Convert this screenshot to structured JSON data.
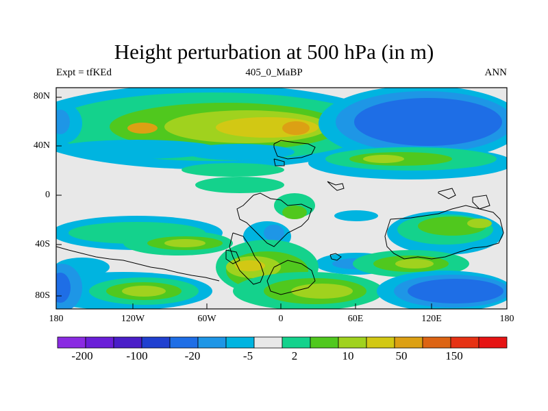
{
  "title": "Height perturbation at 500 hPa (in m)",
  "left_label": "Expt = tfKEd",
  "center_label": "405_0_MaBP",
  "right_label": "ANN",
  "y_ticks": [
    "80N",
    "40N",
    "0",
    "40S",
    "80S"
  ],
  "x_ticks": [
    "180",
    "120W",
    "60W",
    "0",
    "60E",
    "120E",
    "180"
  ],
  "colorbar_labels": [
    "-200",
    "-100",
    "-20",
    "-5",
    "2",
    "10",
    "50",
    "150"
  ],
  "colorbar_colors": [
    "#8a2be2",
    "#6a1fd8",
    "#4a1ec8",
    "#2040d0",
    "#1e6ee6",
    "#1e96e6",
    "#00b4e0",
    "#e8e8e8",
    "#14d28c",
    "#50c81e",
    "#a0d21e",
    "#d2c814",
    "#dca014",
    "#dc6414",
    "#e63214",
    "#e61414"
  ],
  "chart_data": {
    "type": "heatmap",
    "title": "Height perturbation at 500 hPa (in m)",
    "xlabel": "",
    "ylabel": "",
    "xlim": [
      -180,
      180
    ],
    "ylim": [
      -90,
      90
    ],
    "x_ticks": [
      "180",
      "120W",
      "60W",
      "0",
      "60E",
      "120E",
      "180"
    ],
    "y_ticks": [
      "80N",
      "40N",
      "0",
      "40S",
      "80S"
    ],
    "levels": [
      "-200",
      "-100",
      "-20",
      "-5",
      "2",
      "10",
      "50",
      "150"
    ]
  }
}
